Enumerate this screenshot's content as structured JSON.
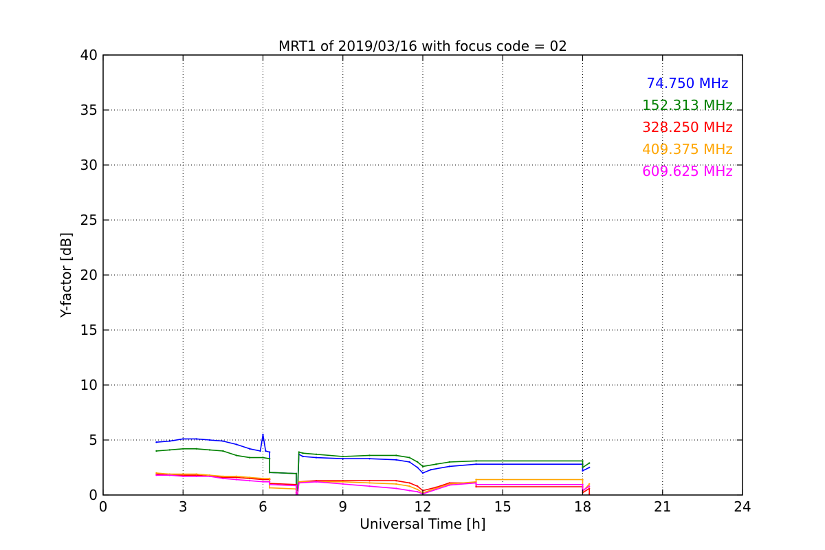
{
  "chart_data": {
    "type": "line",
    "title": "MRT1 of 2019/03/16 with focus code = 02",
    "xlabel": "Universal Time [h]",
    "ylabel": "Y-factor [dB]",
    "xlim": [
      0,
      24
    ],
    "ylim": [
      0,
      40
    ],
    "xticks": [
      0,
      3,
      6,
      9,
      12,
      15,
      18,
      21,
      24
    ],
    "yticks": [
      0,
      5,
      10,
      15,
      20,
      25,
      30,
      35,
      40
    ],
    "grid": true,
    "legend_position": "top-right",
    "series": [
      {
        "name": "74.750 MHz",
        "color": "#0000ff",
        "points": [
          [
            2.0,
            4.8
          ],
          [
            2.5,
            4.9
          ],
          [
            3.0,
            5.1
          ],
          [
            3.5,
            5.1
          ],
          [
            4.0,
            5.0
          ],
          [
            4.5,
            4.9
          ],
          [
            5.0,
            4.6
          ],
          [
            5.5,
            4.2
          ],
          [
            5.9,
            4.0
          ],
          [
            6.0,
            5.5
          ],
          [
            6.1,
            4.0
          ],
          [
            6.25,
            3.9
          ],
          [
            6.25,
            2.05
          ],
          [
            7.25,
            1.95
          ],
          [
            7.25,
            0.5
          ],
          [
            7.3,
            0.4
          ],
          [
            7.35,
            3.7
          ],
          [
            7.5,
            3.5
          ],
          [
            8.0,
            3.4
          ],
          [
            9.0,
            3.3
          ],
          [
            10.0,
            3.3
          ],
          [
            11.0,
            3.2
          ],
          [
            11.5,
            3.0
          ],
          [
            11.8,
            2.5
          ],
          [
            12.0,
            2.0
          ],
          [
            12.3,
            2.3
          ],
          [
            13.0,
            2.6
          ],
          [
            14.0,
            2.8
          ],
          [
            18.0,
            2.8
          ],
          [
            18.0,
            2.2
          ],
          [
            18.25,
            2.5
          ]
        ]
      },
      {
        "name": "152.313 MHz",
        "color": "#008000",
        "points": [
          [
            2.0,
            4.0
          ],
          [
            2.5,
            4.1
          ],
          [
            3.0,
            4.2
          ],
          [
            3.5,
            4.2
          ],
          [
            4.0,
            4.1
          ],
          [
            4.5,
            4.0
          ],
          [
            5.0,
            3.6
          ],
          [
            5.5,
            3.4
          ],
          [
            6.0,
            3.4
          ],
          [
            6.25,
            3.3
          ],
          [
            6.25,
            2.05
          ],
          [
            7.25,
            1.95
          ],
          [
            7.25,
            0.5
          ],
          [
            7.3,
            0.4
          ],
          [
            7.35,
            3.9
          ],
          [
            7.5,
            3.8
          ],
          [
            8.0,
            3.7
          ],
          [
            9.0,
            3.5
          ],
          [
            10.0,
            3.6
          ],
          [
            11.0,
            3.6
          ],
          [
            11.5,
            3.4
          ],
          [
            11.8,
            3.0
          ],
          [
            12.0,
            2.6
          ],
          [
            12.5,
            2.8
          ],
          [
            13.0,
            3.0
          ],
          [
            14.0,
            3.1
          ],
          [
            18.0,
            3.1
          ],
          [
            18.0,
            2.5
          ],
          [
            18.25,
            2.9
          ]
        ]
      },
      {
        "name": "328.250 MHz",
        "color": "#ff0000",
        "points": [
          [
            2.0,
            1.9
          ],
          [
            2.5,
            1.8
          ],
          [
            3.0,
            1.8
          ],
          [
            3.5,
            1.8
          ],
          [
            4.0,
            1.7
          ],
          [
            4.5,
            1.6
          ],
          [
            5.0,
            1.6
          ],
          [
            5.5,
            1.5
          ],
          [
            6.0,
            1.4
          ],
          [
            6.25,
            1.4
          ],
          [
            6.25,
            1.05
          ],
          [
            7.25,
            0.95
          ],
          [
            7.25,
            0.2
          ],
          [
            7.3,
            0.1
          ],
          [
            7.35,
            1.2
          ],
          [
            8.0,
            1.3
          ],
          [
            9.0,
            1.3
          ],
          [
            10.0,
            1.3
          ],
          [
            11.0,
            1.3
          ],
          [
            11.5,
            1.1
          ],
          [
            11.8,
            0.8
          ],
          [
            12.0,
            0.4
          ],
          [
            12.5,
            0.7
          ],
          [
            13.0,
            1.1
          ],
          [
            14.0,
            1.1
          ],
          [
            14.0,
            0.75
          ],
          [
            18.0,
            0.75
          ],
          [
            18.0,
            0.2
          ],
          [
            18.25,
            0.6
          ],
          [
            18.25,
            0.1
          ]
        ]
      },
      {
        "name": "409.375 MHz",
        "color": "#ffa500",
        "points": [
          [
            2.0,
            2.0
          ],
          [
            2.5,
            1.9
          ],
          [
            3.0,
            1.9
          ],
          [
            3.5,
            1.9
          ],
          [
            4.0,
            1.8
          ],
          [
            4.5,
            1.7
          ],
          [
            5.0,
            1.7
          ],
          [
            5.5,
            1.6
          ],
          [
            6.0,
            1.5
          ],
          [
            6.25,
            1.5
          ],
          [
            6.25,
            0.65
          ],
          [
            7.25,
            0.55
          ],
          [
            7.25,
            0.1
          ],
          [
            7.3,
            0.05
          ],
          [
            7.35,
            1.2
          ],
          [
            8.0,
            1.2
          ],
          [
            9.0,
            1.2
          ],
          [
            10.0,
            1.1
          ],
          [
            11.0,
            1.0
          ],
          [
            11.5,
            0.8
          ],
          [
            11.8,
            0.5
          ],
          [
            12.0,
            0.2
          ],
          [
            12.5,
            0.6
          ],
          [
            13.0,
            1.0
          ],
          [
            14.0,
            1.2
          ],
          [
            14.0,
            1.4
          ],
          [
            18.0,
            1.4
          ],
          [
            18.0,
            0.3
          ],
          [
            18.25,
            1.0
          ]
        ]
      },
      {
        "name": "609.625 MHz",
        "color": "#ff00ff",
        "points": [
          [
            2.0,
            1.8
          ],
          [
            2.5,
            1.8
          ],
          [
            3.0,
            1.7
          ],
          [
            3.5,
            1.7
          ],
          [
            4.0,
            1.7
          ],
          [
            4.5,
            1.5
          ],
          [
            5.0,
            1.4
          ],
          [
            5.5,
            1.3
          ],
          [
            6.0,
            1.2
          ],
          [
            6.25,
            1.2
          ],
          [
            6.25,
            0.95
          ],
          [
            7.25,
            0.85
          ],
          [
            7.25,
            0.1
          ],
          [
            7.3,
            0.05
          ],
          [
            7.35,
            1.1
          ],
          [
            8.0,
            1.2
          ],
          [
            9.0,
            1.0
          ],
          [
            10.0,
            0.8
          ],
          [
            11.0,
            0.6
          ],
          [
            11.5,
            0.4
          ],
          [
            11.8,
            0.3
          ],
          [
            12.0,
            0.1
          ],
          [
            12.5,
            0.5
          ],
          [
            13.0,
            0.9
          ],
          [
            14.0,
            1.1
          ],
          [
            14.0,
            0.95
          ],
          [
            18.0,
            0.95
          ],
          [
            18.0,
            0.4
          ],
          [
            18.25,
            0.8
          ]
        ]
      }
    ]
  }
}
